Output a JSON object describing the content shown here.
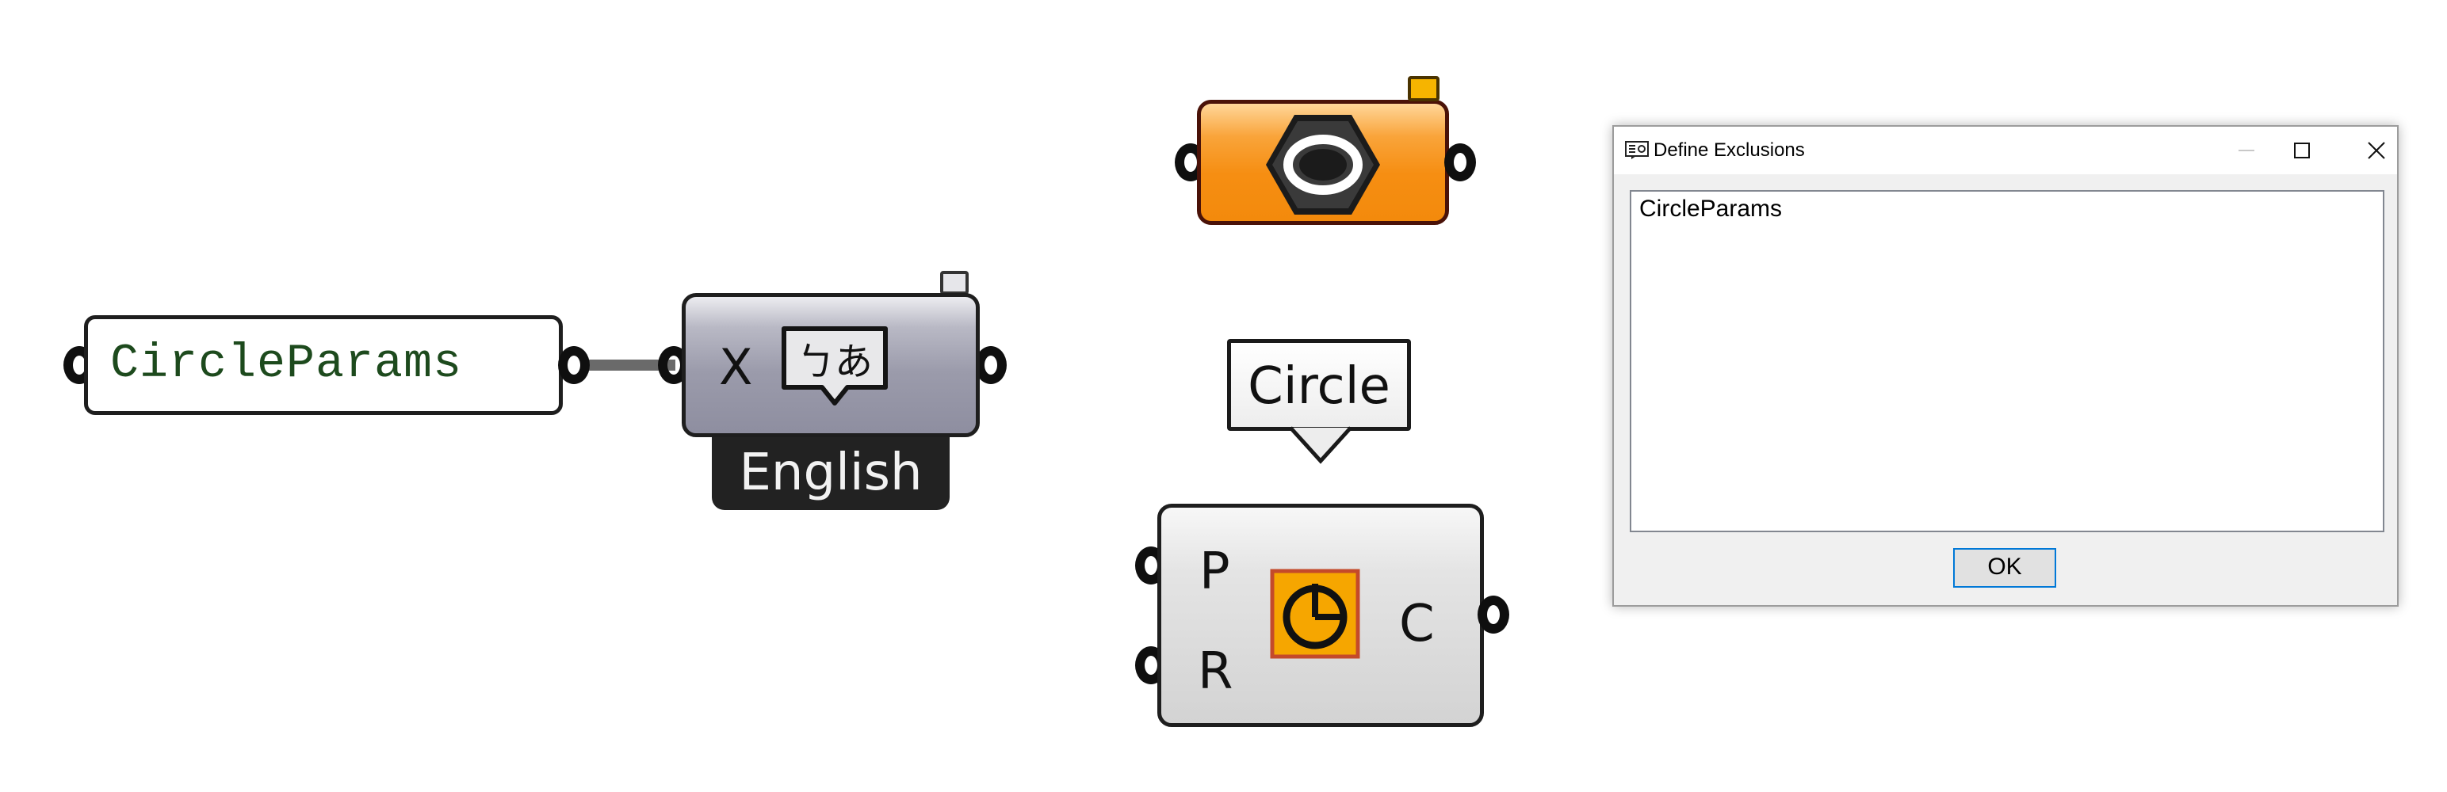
{
  "canvas": {
    "panel": {
      "text": "CircleParams"
    },
    "translate_component": {
      "input_label": "X",
      "language_label": "English",
      "icon": "translate-speech-bubble-icon",
      "icon_text": "ㄅあ"
    },
    "hexagon_component": {
      "icon": "hexagon-nut-icon",
      "color": "#f68e12"
    },
    "scribble": {
      "text": "Circle"
    },
    "circle_component": {
      "inputs": [
        "P",
        "R"
      ],
      "output": "C",
      "icon": "circle-icon",
      "icon_color": "#f6a600"
    }
  },
  "dialog": {
    "title": "Define Exclusions",
    "title_icon": "exclusions-icon",
    "items": [
      "CircleParams"
    ],
    "ok_label": "OK",
    "accent": "#0078d7"
  }
}
